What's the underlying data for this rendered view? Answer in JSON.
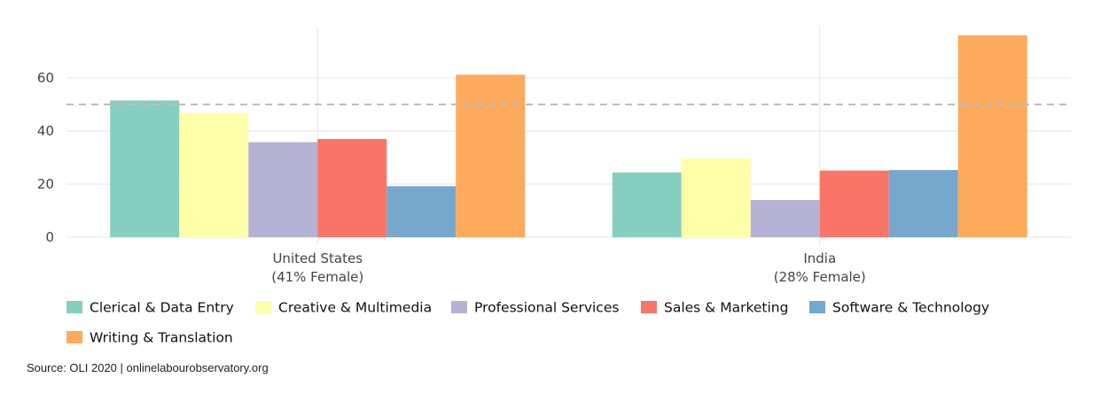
{
  "chart_data": {
    "type": "bar",
    "categories": [
      "United States\n(41% Female)",
      "India\n(28% Female)"
    ],
    "series": [
      {
        "name": "Clerical & Data Entry",
        "color": "#85cec0",
        "values": [
          51.5,
          24.4
        ]
      },
      {
        "name": "Creative & Multimedia",
        "color": "#ffffa9",
        "values": [
          46.8,
          29.7
        ]
      },
      {
        "name": "Professional Services",
        "color": "#b6b2d4",
        "values": [
          35.8,
          14.0
        ]
      },
      {
        "name": "Sales & Marketing",
        "color": "#fb7468",
        "values": [
          37.0,
          25.1
        ]
      },
      {
        "name": "Software & Technology",
        "color": "#75a8cc",
        "values": [
          19.2,
          25.3
        ]
      },
      {
        "name": "Writing & Translation",
        "color": "#fdaa5c",
        "values": [
          61.2,
          76.0
        ]
      }
    ],
    "yticks": [
      0,
      20,
      40,
      60
    ],
    "ylim": [
      -3,
      80
    ],
    "reference_line": 50,
    "grid": true,
    "legend_position": "bottom",
    "title": "",
    "xlabel": "",
    "ylabel": ""
  },
  "source": "Source: OLI 2020 | onlinelabourobservatory.org"
}
